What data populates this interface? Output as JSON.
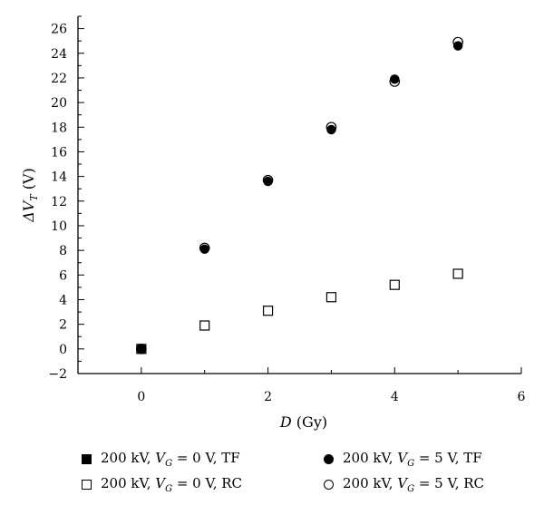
{
  "chart_data": {
    "type": "scatter",
    "xlabel_var": "D",
    "xlabel_unit": "(Gy)",
    "ylabel_prefix": "ΔV",
    "ylabel_sub": "T",
    "ylabel_unit": "(V)",
    "xlim": [
      -1,
      6
    ],
    "ylim": [
      -2,
      27
    ],
    "xticks": [
      0,
      2,
      4,
      6
    ],
    "yticks": [
      -2,
      0,
      2,
      4,
      6,
      8,
      10,
      12,
      14,
      16,
      18,
      20,
      22,
      24,
      26
    ],
    "grid": false,
    "legend_position": "bottom",
    "series": [
      {
        "name": "200 kV, V_G = 0 V, TF",
        "marker": "square-filled",
        "x": [
          0
        ],
        "y": [
          0
        ]
      },
      {
        "name": "200 kV, V_G = 0 V, RC",
        "marker": "square-open",
        "x": [
          0,
          1,
          2,
          3,
          4,
          5
        ],
        "y": [
          0,
          1.9,
          3.1,
          4.2,
          5.2,
          6.1
        ]
      },
      {
        "name": "200 kV, V_G = 5 V, TF",
        "marker": "circle-filled",
        "x": [
          0,
          1,
          2,
          3,
          4,
          5
        ],
        "y": [
          0,
          8.1,
          13.6,
          17.8,
          21.9,
          24.6
        ]
      },
      {
        "name": "200 kV, V_G = 5 V, RC",
        "marker": "circle-open",
        "x": [
          0,
          1,
          2,
          3,
          4,
          5
        ],
        "y": [
          0,
          8.2,
          13.7,
          18.0,
          21.7,
          24.9
        ]
      }
    ]
  },
  "legend": [
    {
      "marker": "square-filled",
      "pre": "200 kV, ",
      "var": "V",
      "sub": "G",
      "post": " = 0 V, TF"
    },
    {
      "marker": "circle-filled",
      "pre": "200 kV, ",
      "var": "V",
      "sub": "G",
      "post": " = 5 V, TF"
    },
    {
      "marker": "square-open",
      "pre": "200 kV, ",
      "var": "V",
      "sub": "G",
      "post": " = 0 V, RC"
    },
    {
      "marker": "circle-open",
      "pre": "200 kV, ",
      "var": "V",
      "sub": "G",
      "post": " = 5 V, RC"
    }
  ]
}
